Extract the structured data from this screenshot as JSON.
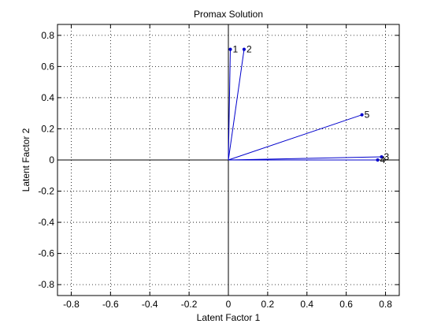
{
  "chart_data": {
    "type": "scatter",
    "title": "Promax Solution",
    "xlabel": "Latent Factor 1",
    "ylabel": "Latent Factor 2",
    "xlim": [
      -0.87,
      0.87
    ],
    "ylim": [
      -0.87,
      0.87
    ],
    "xticks": [
      -0.8,
      -0.6,
      -0.4,
      -0.2,
      0,
      0.2,
      0.4,
      0.6,
      0.8
    ],
    "yticks": [
      -0.8,
      -0.6,
      -0.4,
      -0.2,
      0,
      0.2,
      0.4,
      0.6,
      0.8
    ],
    "xtick_labels": [
      "-0.8",
      "-0.6",
      "-0.4",
      "-0.2",
      "0",
      "0.2",
      "0.4",
      "0.6",
      "0.8"
    ],
    "ytick_labels": [
      "-0.8",
      "-0.6",
      "-0.4",
      "-0.2",
      "0",
      "0.2",
      "0.4",
      "0.6",
      "0.8"
    ],
    "grid": true,
    "grid_style": "dotted",
    "vector_color": "#0000cc",
    "points": [
      {
        "label": "1",
        "x": 0.01,
        "y": 0.71
      },
      {
        "label": "2",
        "x": 0.08,
        "y": 0.71
      },
      {
        "label": "3",
        "x": 0.78,
        "y": 0.02
      },
      {
        "label": "4",
        "x": 0.76,
        "y": 0.0
      },
      {
        "label": "5",
        "x": 0.68,
        "y": 0.29
      }
    ]
  }
}
